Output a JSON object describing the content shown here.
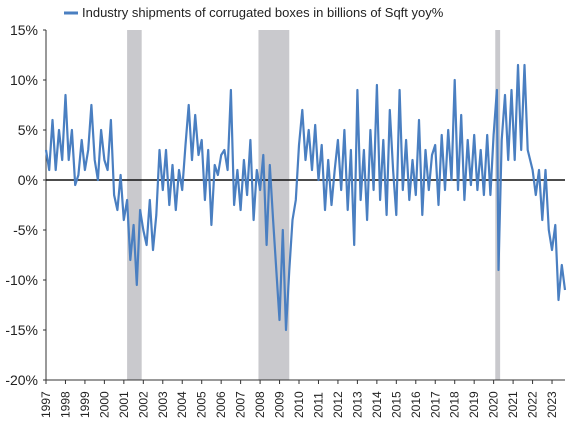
{
  "chart_data": {
    "type": "line",
    "title": "",
    "xlabel": "",
    "ylabel": "",
    "legend": {
      "position": "top-left"
    },
    "grid": false,
    "ylim": [
      -20,
      15
    ],
    "xlim": [
      "1997-01",
      "2023-09"
    ],
    "y_ticks": [
      {
        "value": 15,
        "label": "15%"
      },
      {
        "value": 10,
        "label": "10%"
      },
      {
        "value": 5,
        "label": "5%"
      },
      {
        "value": 0,
        "label": "0%"
      },
      {
        "value": -5,
        "label": "-5%"
      },
      {
        "value": -10,
        "label": "-10%"
      },
      {
        "value": -15,
        "label": "-15%"
      },
      {
        "value": -20,
        "label": "-20%"
      }
    ],
    "x_ticks": [
      "1997",
      "1998",
      "1999",
      "2000",
      "2001",
      "2002",
      "2003",
      "2004",
      "2005",
      "2006",
      "2007",
      "2008",
      "2009",
      "2010",
      "2011",
      "2012",
      "2013",
      "2014",
      "2015",
      "2016",
      "2017",
      "2018",
      "2019",
      "2020",
      "2021",
      "2022",
      "2023"
    ],
    "recession_shading": [
      {
        "start": "2001-03",
        "end": "2001-11"
      },
      {
        "start": "2007-12",
        "end": "2009-06"
      },
      {
        "start": "2020-02",
        "end": "2020-04"
      }
    ],
    "series": [
      {
        "name": "Industry shipments of corrugated boxes in billions of Sqft yoy%",
        "color": "#4a7fc1",
        "points": [
          [
            "1997-01",
            3.0
          ],
          [
            "1997-03",
            1.0
          ],
          [
            "1997-05",
            6.0
          ],
          [
            "1997-07",
            1.0
          ],
          [
            "1997-09",
            5.0
          ],
          [
            "1997-11",
            2.0
          ],
          [
            "1998-01",
            8.5
          ],
          [
            "1998-03",
            2.0
          ],
          [
            "1998-05",
            5.0
          ],
          [
            "1998-07",
            -0.5
          ],
          [
            "1998-09",
            0.5
          ],
          [
            "1998-11",
            4.0
          ],
          [
            "1999-01",
            1.0
          ],
          [
            "1999-03",
            3.0
          ],
          [
            "1999-05",
            7.5
          ],
          [
            "1999-07",
            2.0
          ],
          [
            "1999-09",
            0.0
          ],
          [
            "1999-11",
            5.0
          ],
          [
            "2000-01",
            2.0
          ],
          [
            "2000-03",
            1.0
          ],
          [
            "2000-05",
            6.0
          ],
          [
            "2000-07",
            -1.5
          ],
          [
            "2000-09",
            -3.0
          ],
          [
            "2000-11",
            0.5
          ],
          [
            "2001-01",
            -4.0
          ],
          [
            "2001-03",
            -2.0
          ],
          [
            "2001-05",
            -8.0
          ],
          [
            "2001-07",
            -4.5
          ],
          [
            "2001-09",
            -10.5
          ],
          [
            "2001-11",
            -3.0
          ],
          [
            "2002-01",
            -5.0
          ],
          [
            "2002-03",
            -6.5
          ],
          [
            "2002-05",
            -2.0
          ],
          [
            "2002-07",
            -7.0
          ],
          [
            "2002-09",
            -3.5
          ],
          [
            "2002-11",
            3.0
          ],
          [
            "2003-01",
            -1.0
          ],
          [
            "2003-03",
            3.0
          ],
          [
            "2003-05",
            -2.5
          ],
          [
            "2003-07",
            1.5
          ],
          [
            "2003-09",
            -3.0
          ],
          [
            "2003-11",
            1.0
          ],
          [
            "2004-01",
            -1.0
          ],
          [
            "2004-03",
            3.5
          ],
          [
            "2004-05",
            7.5
          ],
          [
            "2004-07",
            2.0
          ],
          [
            "2004-09",
            6.5
          ],
          [
            "2004-11",
            2.5
          ],
          [
            "2005-01",
            4.0
          ],
          [
            "2005-03",
            -2.0
          ],
          [
            "2005-05",
            3.0
          ],
          [
            "2005-07",
            -4.5
          ],
          [
            "2005-09",
            1.5
          ],
          [
            "2005-11",
            0.5
          ],
          [
            "2006-01",
            2.5
          ],
          [
            "2006-03",
            3.0
          ],
          [
            "2006-05",
            1.0
          ],
          [
            "2006-07",
            9.0
          ],
          [
            "2006-09",
            -2.5
          ],
          [
            "2006-11",
            1.0
          ],
          [
            "2007-01",
            -3.0
          ],
          [
            "2007-03",
            2.0
          ],
          [
            "2007-05",
            -1.5
          ],
          [
            "2007-07",
            4.0
          ],
          [
            "2007-09",
            -4.0
          ],
          [
            "2007-11",
            1.0
          ],
          [
            "2008-01",
            -1.0
          ],
          [
            "2008-03",
            2.5
          ],
          [
            "2008-05",
            -6.5
          ],
          [
            "2008-07",
            1.5
          ],
          [
            "2008-09",
            -4.0
          ],
          [
            "2008-11",
            -9.0
          ],
          [
            "2009-01",
            -14.0
          ],
          [
            "2009-03",
            -5.0
          ],
          [
            "2009-05",
            -15.0
          ],
          [
            "2009-07",
            -9.0
          ],
          [
            "2009-09",
            -4.0
          ],
          [
            "2009-11",
            -2.0
          ],
          [
            "2010-01",
            3.5
          ],
          [
            "2010-03",
            7.0
          ],
          [
            "2010-05",
            2.0
          ],
          [
            "2010-07",
            5.0
          ],
          [
            "2010-09",
            1.0
          ],
          [
            "2010-11",
            5.5
          ],
          [
            "2011-01",
            0.0
          ],
          [
            "2011-03",
            3.5
          ],
          [
            "2011-05",
            -3.0
          ],
          [
            "2011-07",
            2.0
          ],
          [
            "2011-09",
            -2.5
          ],
          [
            "2011-11",
            1.0
          ],
          [
            "2012-01",
            4.0
          ],
          [
            "2012-03",
            -1.0
          ],
          [
            "2012-05",
            5.0
          ],
          [
            "2012-07",
            -3.0
          ],
          [
            "2012-09",
            3.0
          ],
          [
            "2012-11",
            -6.5
          ],
          [
            "2013-01",
            9.0
          ],
          [
            "2013-03",
            -2.0
          ],
          [
            "2013-05",
            3.0
          ],
          [
            "2013-07",
            -4.0
          ],
          [
            "2013-09",
            5.0
          ],
          [
            "2013-11",
            -1.0
          ],
          [
            "2014-01",
            9.5
          ],
          [
            "2014-03",
            -2.0
          ],
          [
            "2014-05",
            4.0
          ],
          [
            "2014-07",
            -3.5
          ],
          [
            "2014-09",
            7.0
          ],
          [
            "2014-11",
            1.0
          ],
          [
            "2015-01",
            -3.5
          ],
          [
            "2015-03",
            9.0
          ],
          [
            "2015-05",
            -1.0
          ],
          [
            "2015-07",
            4.0
          ],
          [
            "2015-09",
            -2.0
          ],
          [
            "2015-11",
            2.0
          ],
          [
            "2016-01",
            -1.5
          ],
          [
            "2016-03",
            6.0
          ],
          [
            "2016-05",
            -3.5
          ],
          [
            "2016-07",
            3.0
          ],
          [
            "2016-09",
            -1.0
          ],
          [
            "2016-11",
            2.5
          ],
          [
            "2017-01",
            3.5
          ],
          [
            "2017-03",
            -2.5
          ],
          [
            "2017-05",
            4.5
          ],
          [
            "2017-07",
            -1.0
          ],
          [
            "2017-09",
            5.0
          ],
          [
            "2017-11",
            0.0
          ],
          [
            "2018-01",
            10.0
          ],
          [
            "2018-03",
            -1.0
          ],
          [
            "2018-05",
            6.5
          ],
          [
            "2018-07",
            -2.0
          ],
          [
            "2018-09",
            4.0
          ],
          [
            "2018-11",
            -0.5
          ],
          [
            "2019-01",
            4.5
          ],
          [
            "2019-03",
            -1.0
          ],
          [
            "2019-05",
            3.0
          ],
          [
            "2019-07",
            -1.5
          ],
          [
            "2019-09",
            4.5
          ],
          [
            "2019-11",
            -1.5
          ],
          [
            "2020-01",
            4.5
          ],
          [
            "2020-03",
            9.0
          ],
          [
            "2020-04",
            -9.0
          ],
          [
            "2020-06",
            4.0
          ],
          [
            "2020-08",
            8.5
          ],
          [
            "2020-10",
            2.0
          ],
          [
            "2020-12",
            9.0
          ],
          [
            "2021-02",
            2.0
          ],
          [
            "2021-04",
            11.5
          ],
          [
            "2021-06",
            3.0
          ],
          [
            "2021-08",
            11.5
          ],
          [
            "2021-10",
            3.0
          ],
          [
            "2022-01",
            1.0
          ],
          [
            "2022-03",
            -1.5
          ],
          [
            "2022-05",
            1.0
          ],
          [
            "2022-07",
            -4.0
          ],
          [
            "2022-09",
            1.0
          ],
          [
            "2022-11",
            -5.0
          ],
          [
            "2023-01",
            -7.0
          ],
          [
            "2023-03",
            -4.5
          ],
          [
            "2023-05",
            -12.0
          ],
          [
            "2023-07",
            -8.5
          ],
          [
            "2023-09",
            -11.0
          ]
        ]
      }
    ]
  }
}
